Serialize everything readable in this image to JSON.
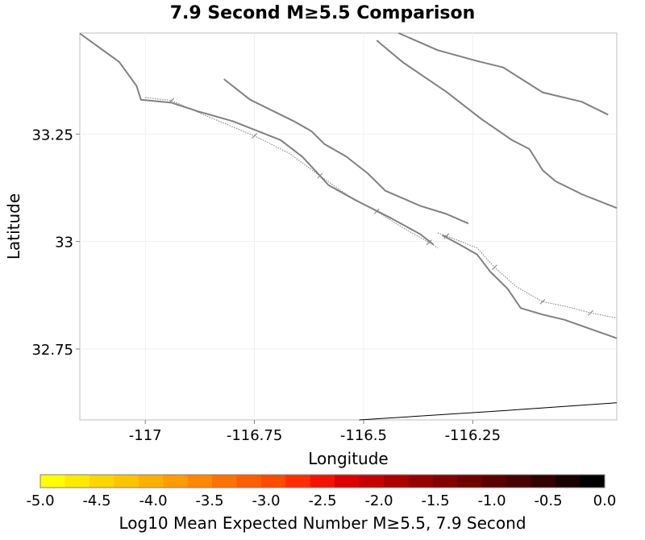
{
  "chart_data": {
    "type": "map",
    "title": "7.9 Second M≥5.5 Comparison",
    "xlabel": "Longitude",
    "ylabel": "Latitude",
    "xlim": [
      -117.15,
      -115.92
    ],
    "ylim": [
      32.585,
      33.485
    ],
    "x_ticks": [
      {
        "value": -117,
        "label": "-117"
      },
      {
        "value": -116.75,
        "label": "-116.75"
      },
      {
        "value": -116.5,
        "label": "-116.5"
      },
      {
        "value": -116.25,
        "label": "-116.25"
      }
    ],
    "y_ticks": [
      {
        "value": 33.25,
        "label": "33.25"
      },
      {
        "value": 33,
        "label": "33"
      },
      {
        "value": 32.75,
        "label": "32.75"
      }
    ],
    "grid": true,
    "fault_color": "#808080",
    "faults": [
      [
        [
          -117.15,
          33.484
        ],
        [
          -117.06,
          33.418
        ],
        [
          -117.02,
          33.362
        ],
        [
          -117.01,
          33.33
        ],
        [
          -116.94,
          33.323
        ],
        [
          -116.88,
          33.303
        ],
        [
          -116.8,
          33.28
        ],
        [
          -116.69,
          33.236
        ],
        [
          -116.64,
          33.197
        ],
        [
          -116.61,
          33.164
        ],
        [
          -116.58,
          33.131
        ],
        [
          -116.52,
          33.097
        ],
        [
          -116.44,
          33.056
        ],
        [
          -116.37,
          33.017
        ],
        [
          -116.34,
          32.993
        ]
      ],
      [
        [
          -116.82,
          33.378
        ],
        [
          -116.76,
          33.33
        ],
        [
          -116.66,
          33.28
        ],
        [
          -116.62,
          33.257
        ],
        [
          -116.59,
          33.227
        ],
        [
          -116.54,
          33.198
        ],
        [
          -116.49,
          33.158
        ],
        [
          -116.45,
          33.118
        ],
        [
          -116.37,
          33.083
        ],
        [
          -116.31,
          33.064
        ],
        [
          -116.26,
          33.042
        ]
      ],
      [
        [
          -116.32,
          33.015
        ],
        [
          -116.28,
          32.993
        ],
        [
          -116.24,
          32.97
        ],
        [
          -116.21,
          32.93
        ],
        [
          -116.17,
          32.89
        ],
        [
          -116.14,
          32.845
        ],
        [
          -116.09,
          32.83
        ],
        [
          -116.04,
          32.818
        ],
        [
          -115.99,
          32.8
        ],
        [
          -115.92,
          32.775
        ]
      ],
      [
        [
          -116.47,
          33.468
        ],
        [
          -116.41,
          33.417
        ],
        [
          -116.31,
          33.348
        ],
        [
          -116.23,
          33.285
        ],
        [
          -116.16,
          33.236
        ],
        [
          -116.12,
          33.215
        ],
        [
          -116.09,
          33.166
        ],
        [
          -116.06,
          33.14
        ],
        [
          -116.0,
          33.11
        ],
        [
          -115.92,
          33.078
        ]
      ],
      [
        [
          -116.42,
          33.485
        ],
        [
          -116.33,
          33.445
        ],
        [
          -116.24,
          33.42
        ],
        [
          -116.18,
          33.405
        ],
        [
          -116.09,
          33.347
        ],
        [
          -116.0,
          33.325
        ],
        [
          -115.94,
          33.295
        ]
      ]
    ],
    "rupture_outlines": [
      [
        [
          -117.0,
          33.335
        ],
        [
          -116.94,
          33.328
        ],
        [
          -116.86,
          33.292
        ],
        [
          -116.75,
          33.246
        ],
        [
          -116.67,
          33.205
        ],
        [
          -116.6,
          33.153
        ],
        [
          -116.54,
          33.11
        ],
        [
          -116.47,
          33.07
        ],
        [
          -116.41,
          33.032
        ],
        [
          -116.35,
          32.998
        ],
        [
          -116.33,
          32.985
        ]
      ],
      [
        [
          -116.33,
          33.02
        ],
        [
          -116.31,
          33.013
        ],
        [
          -116.24,
          32.985
        ],
        [
          -116.2,
          32.94
        ],
        [
          -116.15,
          32.895
        ],
        [
          -116.09,
          32.86
        ],
        [
          -116.04,
          32.85
        ],
        [
          -115.98,
          32.834
        ],
        [
          -115.92,
          32.822
        ]
      ]
    ],
    "border": [
      [
        -116.51,
        32.585
      ],
      [
        -116.2,
        32.605
      ],
      [
        -115.92,
        32.625
      ]
    ],
    "colorbar": {
      "label": "Log10 Mean Expected Number M≥5.5, 7.9 Second",
      "range": [
        -5.0,
        0.0
      ],
      "tick_labels": [
        "-5.0",
        "-4.5",
        "-4.0",
        "-3.5",
        "-3.0",
        "-2.5",
        "-2.0",
        "-1.5",
        "-1.0",
        "-0.5",
        "0.0"
      ],
      "colors": [
        "#ffff00",
        "#ffea00",
        "#ffd600",
        "#ffc400",
        "#ffb000",
        "#ff9c00",
        "#ff8800",
        "#ff7200",
        "#ff5e00",
        "#ff4a00",
        "#ff2d00",
        "#f01400",
        "#dc0000",
        "#c40000",
        "#ac0000",
        "#960000",
        "#820000",
        "#6e0000",
        "#5a0000",
        "#460000",
        "#320000",
        "#1a0000",
        "#000000"
      ]
    }
  }
}
